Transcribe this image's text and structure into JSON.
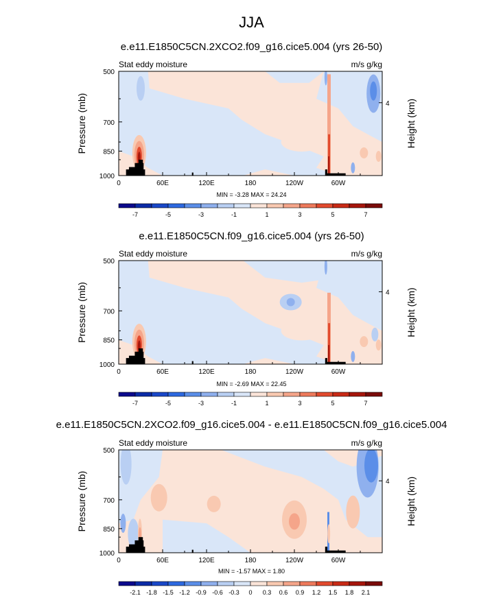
{
  "title": "JJA",
  "colors": {
    "frame": "#000000",
    "background": "#ffffff",
    "land": "#000000"
  },
  "colorbar_full": {
    "colors": [
      "#0c0a8c",
      "#0b2ba6",
      "#1a48c8",
      "#2d69e0",
      "#5b8ee8",
      "#8fb0ee",
      "#b9cff3",
      "#d9e6f8",
      "#fbe4d8",
      "#f9c9b1",
      "#f5a58a",
      "#ee7a5c",
      "#e24a2e",
      "#c82a16",
      "#a6160c",
      "#7a0c0a"
    ],
    "labels": [
      "-7",
      "-5",
      "-3",
      "-1",
      "1",
      "3",
      "5",
      "7"
    ]
  },
  "colorbar_diff": {
    "colors": [
      "#0c0a8c",
      "#0b2ba6",
      "#1a48c8",
      "#2d69e0",
      "#5b8ee8",
      "#8fb0ee",
      "#b9cff3",
      "#d9e6f8",
      "#fbe4d8",
      "#f9c9b1",
      "#f5a58a",
      "#ee7a5c",
      "#e24a2e",
      "#c82a16",
      "#a6160c",
      "#7a0c0a"
    ],
    "labels": [
      "-2.1",
      "-1.8",
      "-1.5",
      "-1.2",
      "-0.9",
      "-0.6",
      "-0.3",
      "0",
      "0.3",
      "0.6",
      "0.9",
      "1.2",
      "1.5",
      "1.8",
      "2.1"
    ]
  },
  "panels": [
    {
      "title": "e.e11.E1850C5CN.2XCO2.f09_g16.cice5.004 (yrs 26-50)",
      "left_label": "Stat eddy moisture",
      "right_label": "m/s g/kg",
      "stats": "MIN = -3.28  MAX = 24.24"
    },
    {
      "title": "e.e11.E1850C5CN.f09_g16.cice5.004 (yrs 26-50)",
      "left_label": "Stat eddy moisture",
      "right_label": "m/s g/kg",
      "stats": "MIN = -2.69  MAX = 22.45"
    },
    {
      "title": "e.e11.E1850C5CN.2XCO2.f09_g16.cice5.004 - e.e11.E1850C5CN.f09_g16.cice5.004",
      "left_label": "Stat eddy moisture",
      "right_label": "m/s g/kg",
      "stats": "MIN = -1.57  MAX =  1.80"
    }
  ],
  "chart_data": [
    {
      "type": "heatmap",
      "title": "e.e11.E1850C5CN.2XCO2.f09_g16.cice5.004 (yrs 26-50)",
      "subtitle": "Stat eddy moisture",
      "units": "m/s g/kg",
      "xlabel": "",
      "ylabel": "Pressure (mb)",
      "ylabel_right": "Height (km)",
      "x_ticks": [
        "0",
        "60E",
        "120E",
        "180",
        "120W",
        "60W"
      ],
      "y_ticks": [
        "500",
        "700",
        "850",
        "1000"
      ],
      "y_right_ticks": [
        "4"
      ],
      "contour_levels": [
        -7,
        -6,
        -5,
        -4,
        -3,
        -2,
        -1,
        0,
        1,
        2,
        3,
        4,
        5,
        6,
        7
      ],
      "min": -3.28,
      "max": 24.24
    },
    {
      "type": "heatmap",
      "title": "e.e11.E1850C5CN.f09_g16.cice5.004 (yrs 26-50)",
      "subtitle": "Stat eddy moisture",
      "units": "m/s g/kg",
      "xlabel": "",
      "ylabel": "Pressure (mb)",
      "ylabel_right": "Height (km)",
      "x_ticks": [
        "0",
        "60E",
        "120E",
        "180",
        "120W",
        "60W"
      ],
      "y_ticks": [
        "500",
        "700",
        "850",
        "1000"
      ],
      "y_right_ticks": [
        "4"
      ],
      "contour_levels": [
        -7,
        -6,
        -5,
        -4,
        -3,
        -2,
        -1,
        0,
        1,
        2,
        3,
        4,
        5,
        6,
        7
      ],
      "min": -2.69,
      "max": 22.45
    },
    {
      "type": "heatmap",
      "title": "e.e11.E1850C5CN.2XCO2.f09_g16.cice5.004 - e.e11.E1850C5CN.f09_g16.cice5.004",
      "subtitle": "Stat eddy moisture",
      "units": "m/s g/kg",
      "xlabel": "",
      "ylabel": "Pressure (mb)",
      "ylabel_right": "Height (km)",
      "x_ticks": [
        "0",
        "60E",
        "120E",
        "180",
        "120W",
        "60W"
      ],
      "y_ticks": [
        "500",
        "700",
        "850",
        "1000"
      ],
      "y_right_ticks": [
        "4"
      ],
      "contour_levels": [
        -2.1,
        -1.8,
        -1.5,
        -1.2,
        -0.9,
        -0.6,
        -0.3,
        0,
        0.3,
        0.6,
        0.9,
        1.2,
        1.5,
        1.8,
        2.1
      ],
      "min": -1.57,
      "max": 1.8
    }
  ]
}
